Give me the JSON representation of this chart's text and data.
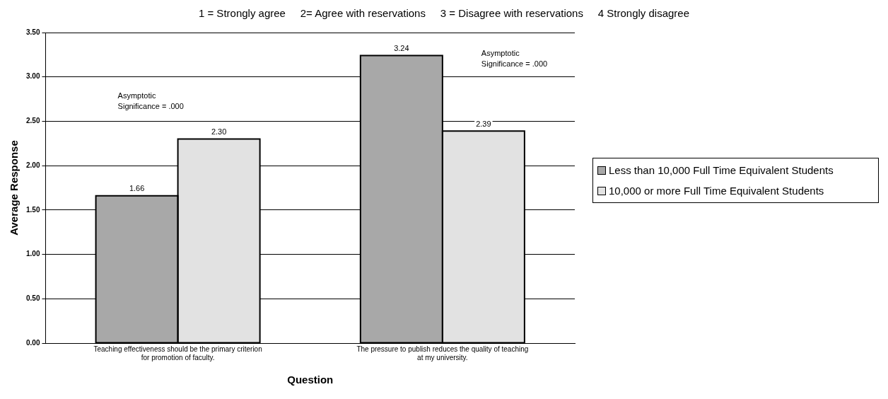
{
  "chart_data": {
    "type": "bar",
    "title": "1 = Strongly agree     2= Agree with reservations     3 = Disagree with reservations     4 Strongly disagree",
    "xlabel": "Question",
    "ylabel": "Average Response",
    "categories": [
      "Teaching effectiveness should be the primary criterion for promotion of faculty.",
      "The pressure to publish reduces the quality of teaching at my university."
    ],
    "series": [
      {
        "name": "Less than 10,000 Full Time Equivalent Students",
        "color": "#a8a8a8",
        "values": [
          1.66,
          3.24
        ],
        "value_labels": [
          "1.66",
          "3.24"
        ]
      },
      {
        "name": "10,000 or more Full Time Equivalent Students",
        "color": "#e2e2e2",
        "values": [
          2.3,
          2.39
        ],
        "value_labels": [
          "2.30",
          "2.39"
        ]
      }
    ],
    "ylim": [
      0,
      3.5
    ],
    "yticks": [
      {
        "value": 0,
        "label": "0.00"
      },
      {
        "value": 0.5,
        "label": "0.50"
      },
      {
        "value": 1,
        "label": "1.00"
      },
      {
        "value": 1.5,
        "label": "1.50"
      },
      {
        "value": 2,
        "label": "2.00"
      },
      {
        "value": 2.5,
        "label": "2.50"
      },
      {
        "value": 3,
        "label": "3.00"
      },
      {
        "value": 3.5,
        "label": "3.50"
      }
    ],
    "annotations": [
      "Asymptotic Significance = .000",
      "Asymptotic Significance = .000"
    ],
    "grid": "y",
    "legend": "right"
  }
}
